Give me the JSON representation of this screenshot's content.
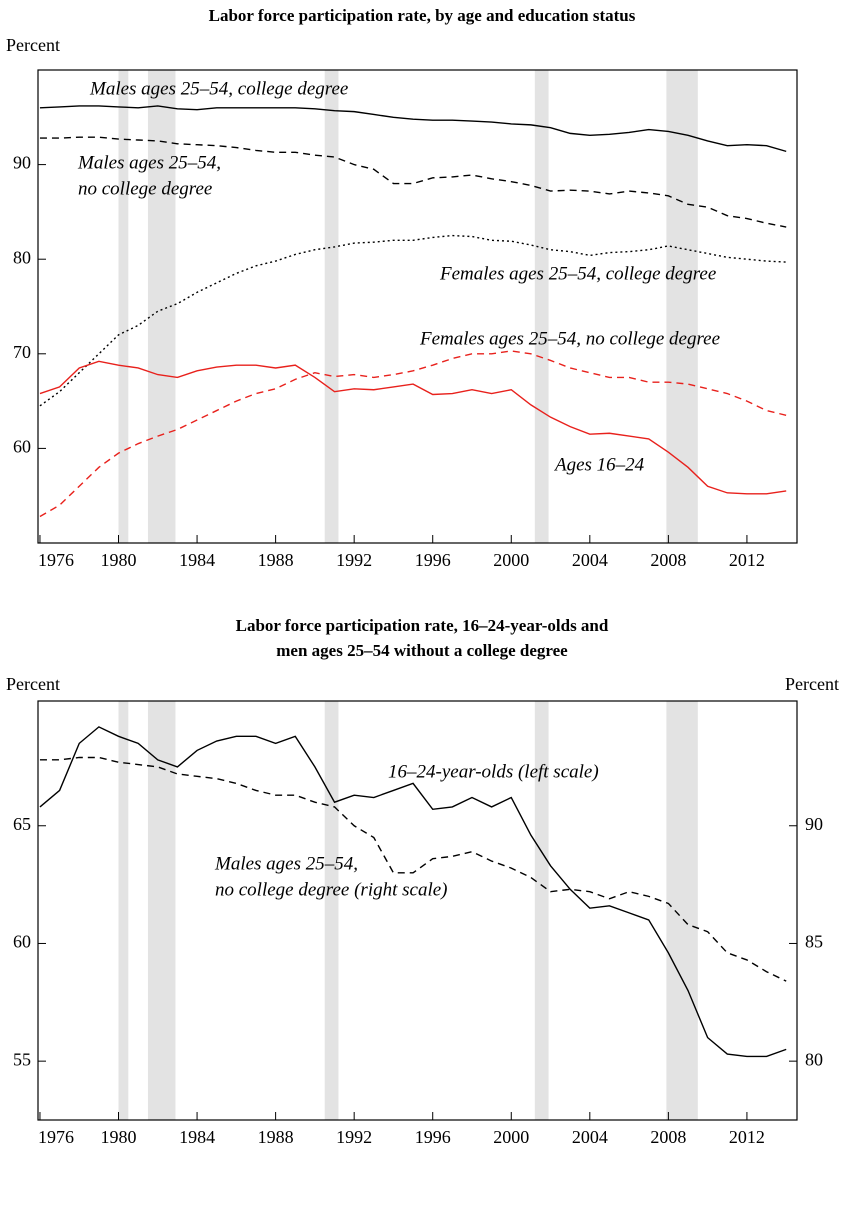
{
  "chart_data": [
    {
      "type": "line",
      "title": "Labor force participation rate, by age and education status",
      "ylabel": "Percent",
      "xlim": [
        1975.9,
        2014.55
      ],
      "xticks": [
        1976,
        1980,
        1984,
        1988,
        1992,
        1996,
        2000,
        2004,
        2008,
        2012
      ],
      "ylim": [
        50,
        100
      ],
      "yticks": [
        60,
        70,
        80,
        90
      ],
      "recessions": [
        [
          1980.0,
          1980.5
        ],
        [
          1981.5,
          1982.9
        ],
        [
          1990.5,
          1991.2
        ],
        [
          2001.2,
          2001.9
        ],
        [
          2007.9,
          2009.5
        ]
      ],
      "x": [
        1976,
        1977,
        1978,
        1979,
        1980,
        1981,
        1982,
        1983,
        1984,
        1985,
        1986,
        1987,
        1988,
        1989,
        1990,
        1991,
        1992,
        1993,
        1994,
        1995,
        1996,
        1997,
        1998,
        1999,
        2000,
        2001,
        2002,
        2003,
        2004,
        2005,
        2006,
        2007,
        2008,
        2009,
        2010,
        2011,
        2012,
        2013,
        2014
      ],
      "series": [
        {
          "name": [
            "Males ages 25–54, college degree"
          ],
          "color": "#000000",
          "style": "solid",
          "values": [
            96.0,
            96.1,
            96.2,
            96.2,
            96.1,
            96.0,
            96.2,
            95.9,
            95.8,
            96.0,
            96.0,
            96.0,
            96.0,
            96.0,
            95.9,
            95.7,
            95.6,
            95.3,
            95.0,
            94.8,
            94.7,
            94.7,
            94.6,
            94.5,
            94.3,
            94.2,
            93.9,
            93.3,
            93.1,
            93.2,
            93.4,
            93.7,
            93.5,
            93.1,
            92.5,
            92.0,
            92.1,
            92.0,
            91.4
          ]
        },
        {
          "name": [
            "Males ages 25–54,",
            "no college degree"
          ],
          "color": "#000000",
          "style": "dashed",
          "values": [
            92.8,
            92.8,
            92.9,
            92.9,
            92.7,
            92.6,
            92.5,
            92.2,
            92.1,
            92.0,
            91.8,
            91.5,
            91.3,
            91.3,
            91.0,
            90.8,
            90.0,
            89.5,
            88.0,
            88.0,
            88.6,
            88.7,
            88.9,
            88.5,
            88.2,
            87.8,
            87.2,
            87.3,
            87.2,
            86.9,
            87.2,
            87.0,
            86.7,
            85.8,
            85.5,
            84.6,
            84.3,
            83.8,
            83.4
          ]
        },
        {
          "name": [
            "Females ages 25–54, college degree"
          ],
          "color": "#000000",
          "style": "dotted",
          "values": [
            64.5,
            66.0,
            68.0,
            70.0,
            72.0,
            73.0,
            74.5,
            75.3,
            76.5,
            77.5,
            78.5,
            79.3,
            79.8,
            80.5,
            81.0,
            81.3,
            81.7,
            81.8,
            82.0,
            82.0,
            82.3,
            82.5,
            82.4,
            82.0,
            81.9,
            81.5,
            81.0,
            80.8,
            80.4,
            80.7,
            80.8,
            81.0,
            81.4,
            81.0,
            80.6,
            80.2,
            80.0,
            79.8,
            79.7
          ]
        },
        {
          "name": [
            "Females ages 25–54, no college degree"
          ],
          "color": "#e8211c",
          "style": "dashed",
          "values": [
            52.8,
            54.0,
            56.0,
            58.0,
            59.5,
            60.5,
            61.3,
            62.0,
            63.0,
            64.0,
            65.0,
            65.8,
            66.3,
            67.3,
            68.0,
            67.6,
            67.8,
            67.5,
            67.8,
            68.2,
            68.8,
            69.5,
            70.0,
            70.0,
            70.3,
            70.0,
            69.3,
            68.5,
            68.0,
            67.5,
            67.5,
            67.0,
            67.0,
            66.8,
            66.3,
            65.8,
            65.0,
            64.0,
            63.5
          ]
        },
        {
          "name": [
            "Ages 16–24"
          ],
          "color": "#e8211c",
          "style": "solid",
          "values": [
            65.8,
            66.5,
            68.5,
            69.2,
            68.8,
            68.5,
            67.8,
            67.5,
            68.2,
            68.6,
            68.8,
            68.8,
            68.5,
            68.8,
            67.5,
            66.0,
            66.3,
            66.2,
            66.5,
            66.8,
            65.7,
            65.8,
            66.2,
            65.8,
            66.2,
            64.6,
            63.3,
            62.3,
            61.5,
            61.6,
            61.3,
            61.0,
            59.6,
            58.0,
            56.0,
            55.3,
            55.2,
            55.2,
            55.5
          ]
        }
      ]
    },
    {
      "type": "line",
      "title": [
        "Labor force participation rate, 16–24-year-olds and",
        "men ages 25–54 without a college degree"
      ],
      "ylabel": "Percent",
      "y2label": "Percent",
      "xlim": [
        1975.9,
        2014.55
      ],
      "xticks": [
        1976,
        1980,
        1984,
        1988,
        1992,
        1996,
        2000,
        2004,
        2008,
        2012
      ],
      "ylim": [
        52.5,
        70.3
      ],
      "yticks": [
        55,
        60,
        65
      ],
      "y2lim": [
        77.5,
        95.3
      ],
      "y2ticks": [
        80,
        85,
        90
      ],
      "recessions": [
        [
          1980.0,
          1980.5
        ],
        [
          1981.5,
          1982.9
        ],
        [
          1990.5,
          1991.2
        ],
        [
          2001.2,
          2001.9
        ],
        [
          2007.9,
          2009.5
        ]
      ],
      "x": [
        1976,
        1977,
        1978,
        1979,
        1980,
        1981,
        1982,
        1983,
        1984,
        1985,
        1986,
        1987,
        1988,
        1989,
        1990,
        1991,
        1992,
        1993,
        1994,
        1995,
        1996,
        1997,
        1998,
        1999,
        2000,
        2001,
        2002,
        2003,
        2004,
        2005,
        2006,
        2007,
        2008,
        2009,
        2010,
        2011,
        2012,
        2013,
        2014
      ],
      "series": [
        {
          "name": [
            "16–24-year-olds (left scale)"
          ],
          "color": "#000000",
          "style": "solid",
          "values": [
            65.8,
            66.5,
            68.5,
            69.2,
            68.8,
            68.5,
            67.8,
            67.5,
            68.2,
            68.6,
            68.8,
            68.8,
            68.5,
            68.8,
            67.5,
            66.0,
            66.3,
            66.2,
            66.5,
            66.8,
            65.7,
            65.8,
            66.2,
            65.8,
            66.2,
            64.6,
            63.3,
            62.3,
            61.5,
            61.6,
            61.3,
            61.0,
            59.6,
            58.0,
            56.0,
            55.3,
            55.2,
            55.2,
            55.5
          ]
        },
        {
          "name": [
            "Males ages 25–54,",
            "no college degree (right scale)"
          ],
          "color": "#000000",
          "style": "dashed",
          "axis": "y2",
          "values": [
            92.8,
            92.8,
            92.9,
            92.9,
            92.7,
            92.6,
            92.5,
            92.2,
            92.1,
            92.0,
            91.8,
            91.5,
            91.3,
            91.3,
            91.0,
            90.8,
            90.0,
            89.5,
            88.0,
            88.0,
            88.6,
            88.7,
            88.9,
            88.5,
            88.2,
            87.8,
            87.2,
            87.3,
            87.2,
            86.9,
            87.2,
            87.0,
            86.7,
            85.8,
            85.5,
            84.6,
            84.3,
            83.8,
            83.4
          ]
        }
      ]
    }
  ]
}
